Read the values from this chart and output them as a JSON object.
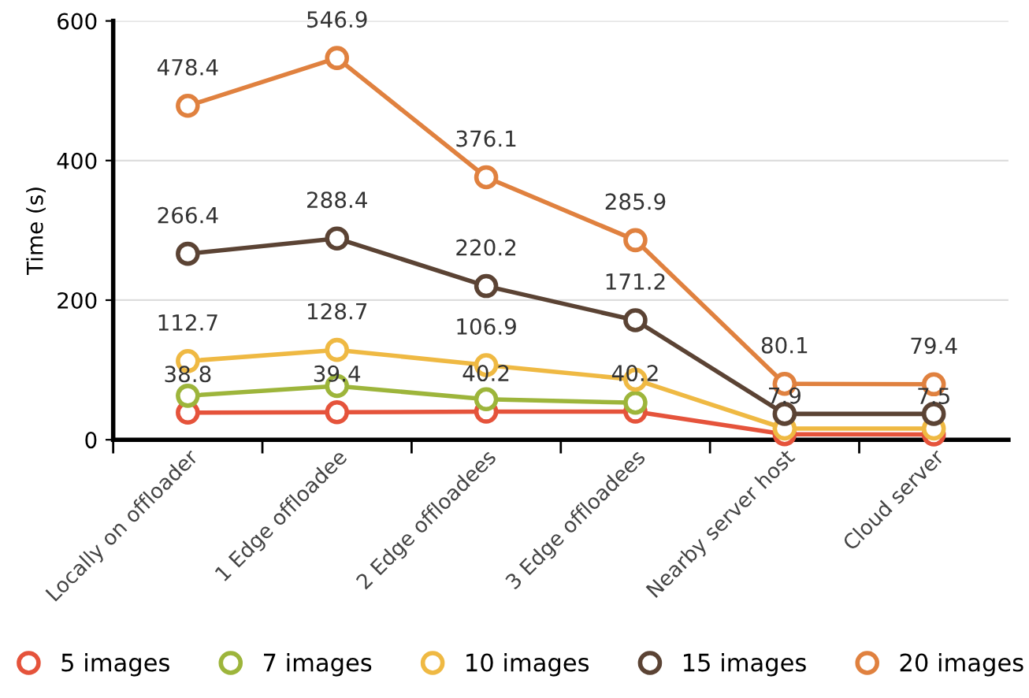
{
  "chart_data": {
    "type": "line",
    "ylabel": "Time (s)",
    "categories": [
      "Locally on offloader",
      "1 Edge offloadee",
      "2 Edge offloadees",
      "3 Edge offloadees",
      "Nearby server host",
      "Cloud server"
    ],
    "series": [
      {
        "name": "5 images",
        "color": "#e5533b",
        "values": [
          38.8,
          39.4,
          40.2,
          40.2,
          7.9,
          7.5
        ],
        "value_labels": [
          "38.8",
          "39.4",
          "40.2",
          "40.2",
          "7.9",
          "7.5"
        ]
      },
      {
        "name": "7 images",
        "color": "#9db53b",
        "values": [
          63,
          77,
          58,
          53,
          null,
          null
        ],
        "value_labels": [
          null,
          null,
          null,
          null,
          null,
          null
        ]
      },
      {
        "name": "10 images",
        "color": "#efb943",
        "values": [
          112.7,
          128.7,
          106.9,
          86,
          16,
          16
        ],
        "value_labels": [
          "112.7",
          "128.7",
          "106.9",
          null,
          null,
          null
        ]
      },
      {
        "name": "15 images",
        "color": "#5b4334",
        "values": [
          266.4,
          288.4,
          220.2,
          171.2,
          37,
          37
        ],
        "value_labels": [
          "266.4",
          "288.4",
          "220.2",
          "171.2",
          null,
          null
        ]
      },
      {
        "name": "20 images",
        "color": "#e0813f",
        "values": [
          478.4,
          546.9,
          376.1,
          285.9,
          80.1,
          79.4
        ],
        "value_labels": [
          "478.4",
          "546.9",
          "376.1",
          "285.9",
          "80.1",
          "79.4"
        ]
      }
    ],
    "ylim": [
      0,
      600
    ],
    "yticks": [
      0,
      200,
      400,
      600
    ],
    "grid": "y",
    "legend": "bottom",
    "marker": "circle",
    "line_style": "solid"
  }
}
